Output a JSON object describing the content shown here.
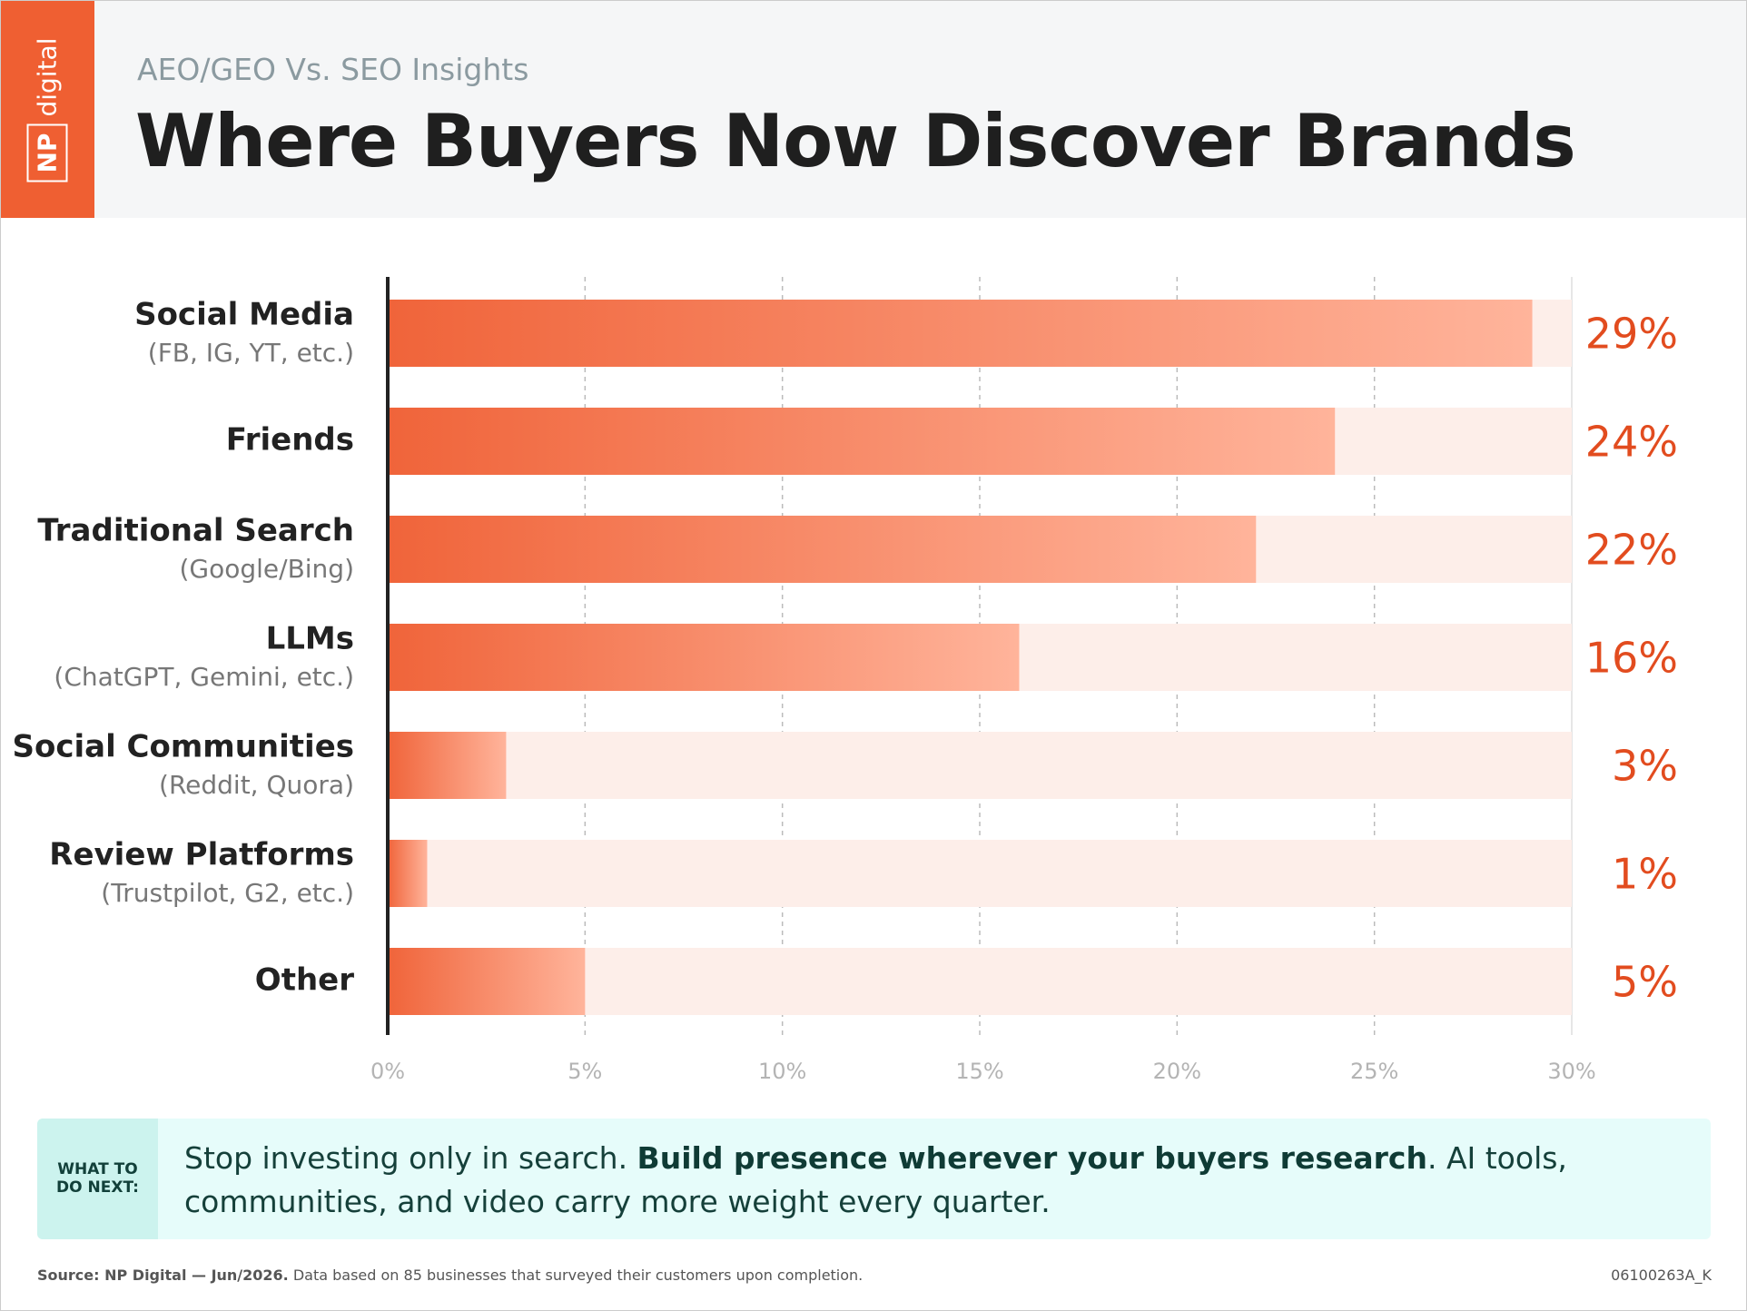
{
  "logo": {
    "mark": "NP",
    "word": "digital"
  },
  "header": {
    "subtitle": "AEO/GEO Vs. SEO Insights",
    "title": "Where Buyers Now Discover Brands"
  },
  "chart_data": {
    "type": "bar",
    "orientation": "horizontal",
    "categories": [
      "Social Media",
      "Friends",
      "Traditional Search",
      "LLMs",
      "Social Communities",
      "Review Platforms",
      "Other"
    ],
    "category_notes": [
      "(FB, IG, YT, etc.)",
      null,
      "(Google/Bing)",
      "(ChatGPT, Gemini, etc.)",
      "(Reddit, Quora)",
      "(Trustpilot, G2, etc.)",
      null
    ],
    "values": [
      29,
      24,
      22,
      16,
      3,
      1,
      5
    ],
    "value_labels": [
      "29%",
      "24%",
      "22%",
      "16%",
      "3%",
      "1%",
      "5%"
    ],
    "color": "#f0643a",
    "track_color": "#fdeee9",
    "xlim": [
      0,
      30
    ],
    "xticks": [
      {
        "value": 0,
        "label": "0%"
      },
      {
        "value": 5,
        "label": "5%"
      },
      {
        "value": 10,
        "label": "10%"
      },
      {
        "value": 15,
        "label": "15%"
      },
      {
        "value": 20,
        "label": "20%"
      },
      {
        "value": 25,
        "label": "25%"
      },
      {
        "value": 30,
        "label": "30%"
      }
    ],
    "grid": true
  },
  "callout": {
    "tag": "WHAT TO DO NEXT:",
    "text_start": "Stop investing only in search. ",
    "text_bold": "Build presence wherever your buyers research",
    "text_end": ". AI tools, communities, and video carry more weight every quarter."
  },
  "footer": {
    "source": "Source: NP Digital — Jun/2026.",
    "note": " Data based on 85 businesses that surveyed their customers upon completion.",
    "code": "06100263A_K"
  }
}
